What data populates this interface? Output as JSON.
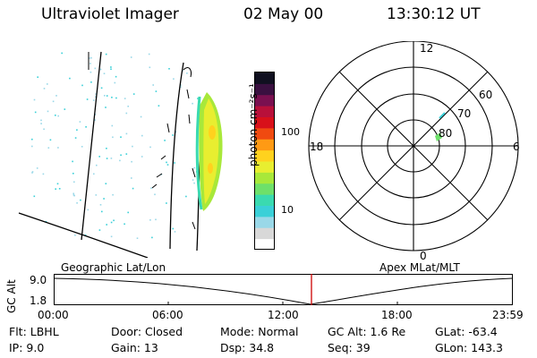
{
  "header": {
    "instrument": "Ultraviolet Imager",
    "date": "02 May 00",
    "time": "13:30:12 UT"
  },
  "colorbar": {
    "label": "photon cm⁻²s⁻¹",
    "ticks": [
      "100",
      "10"
    ],
    "colors": [
      "#ffffff",
      "#d8d8d8",
      "#9ad8e8",
      "#3ad0d8",
      "#3adab0",
      "#6ee06a",
      "#a8e83a",
      "#e8ee30",
      "#ffd21e",
      "#ff9a14",
      "#f04a10",
      "#d8101a",
      "#b8103a",
      "#7a1050",
      "#3a1040",
      "#101020"
    ]
  },
  "polar": {
    "mlt_labels": {
      "top": "12",
      "bottom": "0",
      "left": "18",
      "right": "6"
    },
    "lat_labels": [
      "60",
      "70",
      "80"
    ]
  },
  "timeline": {
    "ylabel": "GC Alt",
    "yticks": [
      "9.0",
      "1.8"
    ],
    "left_caption": "Geographic Lat/Lon",
    "right_caption": "Apex MLat/MLT",
    "xticks": [
      "00:00",
      "06:00",
      "12:00",
      "18:00",
      "23:59"
    ],
    "current_time_color": "#cc0000"
  },
  "status": {
    "flt": "Flt: LBHL",
    "ip": "IP: 9.0",
    "door": "Door: Closed",
    "gain": "Gain: 13",
    "mode": "Mode: Normal",
    "dsp": "Dsp:  34.8",
    "gcalt": "GC Alt: 1.6 Re",
    "seq": "Seq: 39",
    "glat": "GLat:  -63.4",
    "glon": "GLon: 143.3"
  }
}
